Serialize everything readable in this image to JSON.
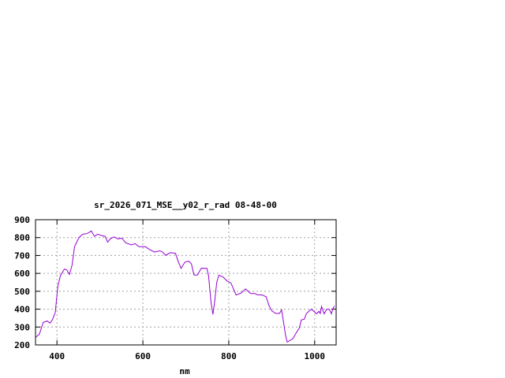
{
  "chart_data": {
    "type": "line",
    "title": "sr_2026_071_MSE__y02_r_rad 08-48-00",
    "xlabel": "nm",
    "ylabel": "",
    "xlim": [
      350,
      1050
    ],
    "ylim": [
      200,
      900
    ],
    "xticks": [
      400,
      600,
      800,
      1000
    ],
    "yticks": [
      200,
      300,
      400,
      500,
      600,
      700,
      800,
      900
    ],
    "grid": true,
    "line_color": "#9400d3",
    "series": [
      {
        "x": [
          351,
          359,
          368,
          377,
          384,
          390,
          396,
          402,
          408,
          417,
          423,
          429,
          435,
          441,
          451,
          460,
          470,
          480,
          487,
          495,
          505,
          512,
          518,
          524,
          533,
          542,
          551,
          560,
          573,
          582,
          591,
          606,
          615,
          627,
          640,
          646,
          653,
          664,
          676,
          682,
          689,
          698,
          707,
          713,
          719,
          727,
          736,
          749,
          753,
          759,
          763,
          767,
          772,
          777,
          787,
          796,
          805,
          817,
          829,
          839,
          851,
          860,
          866,
          878,
          887,
          894,
          900,
          909,
          918,
          923,
          927,
          932,
          936,
          949,
          958,
          964,
          969,
          976,
          981,
          992,
          998,
          1004,
          1010,
          1013,
          1016,
          1022,
          1028,
          1034,
          1039,
          1042,
          1046
        ],
        "y": [
          244,
          260,
          326,
          334,
          322,
          344,
          381,
          528,
          587,
          624,
          619,
          594,
          646,
          749,
          800,
          819,
          822,
          837,
          807,
          819,
          810,
          807,
          775,
          793,
          804,
          793,
          797,
          771,
          759,
          766,
          749,
          749,
          734,
          719,
          726,
          719,
          701,
          716,
          712,
          668,
          628,
          663,
          668,
          653,
          591,
          591,
          629,
          628,
          587,
          432,
          371,
          440,
          550,
          590,
          579,
          557,
          547,
          479,
          491,
          513,
          487,
          488,
          481,
          479,
          469,
          418,
          391,
          376,
          376,
          396,
          334,
          256,
          216,
          234,
          271,
          293,
          340,
          344,
          376,
          400,
          388,
          374,
          388,
          376,
          415,
          374,
          399,
          399,
          374,
          399,
          418
        ]
      }
    ]
  }
}
